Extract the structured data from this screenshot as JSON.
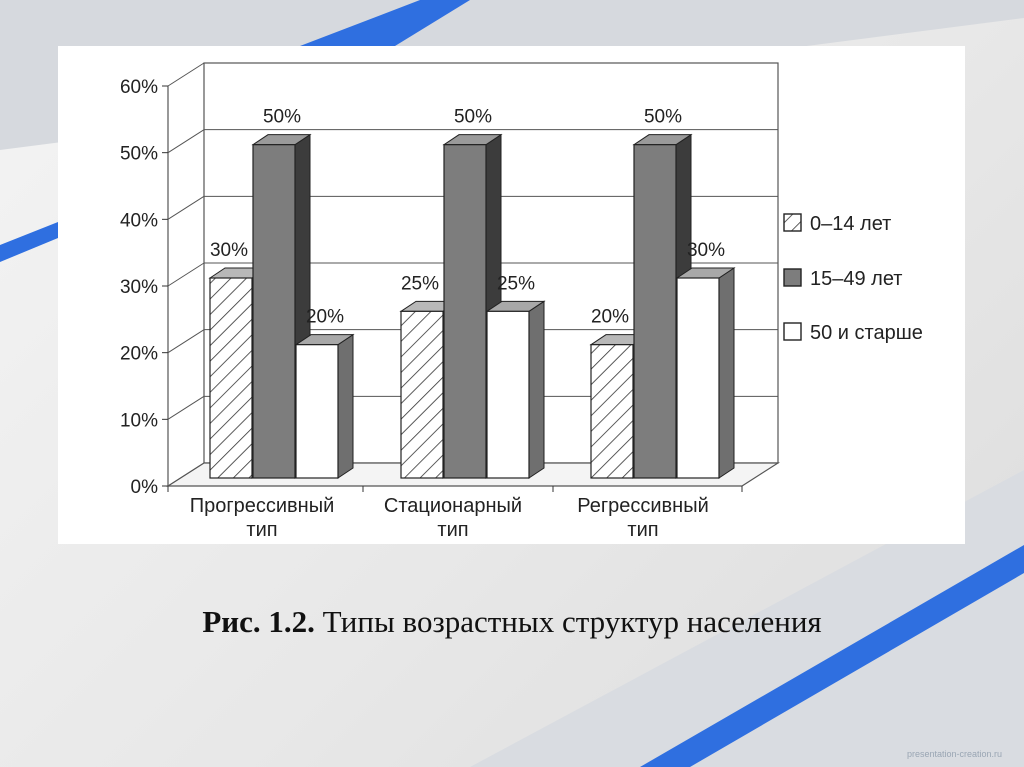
{
  "caption": {
    "label": "Рис. 1.2.",
    "text": "Типы возрастных структур населения"
  },
  "watermark": "presentation-creation.ru",
  "colors": {
    "accent_blue": "#2f6fe0",
    "bar_dark": "#7d7d7d",
    "bar_light": "#ffffff"
  },
  "chart_data": {
    "type": "bar",
    "title": "",
    "xlabel": "",
    "ylabel": "",
    "ylim": [
      0,
      60
    ],
    "yticks": [
      "0%",
      "10%",
      "20%",
      "30%",
      "40%",
      "50%",
      "60%"
    ],
    "categories": [
      {
        "line1": "Прогрессивный",
        "line2": "тип"
      },
      {
        "line1": "Стационарный",
        "line2": "тип"
      },
      {
        "line1": "Регрессивный",
        "line2": "тип"
      }
    ],
    "series": [
      {
        "name": "0–14 лет",
        "values": [
          30,
          25,
          20
        ],
        "labels": [
          "30%",
          "25%",
          "20%"
        ],
        "pattern": "hatch"
      },
      {
        "name": "15–49 лет",
        "values": [
          50,
          50,
          50
        ],
        "labels": [
          "50%",
          "50%",
          "50%"
        ],
        "pattern": "dark"
      },
      {
        "name": "50 и старше",
        "values": [
          20,
          25,
          30
        ],
        "labels": [
          "20%",
          "25%",
          "30%"
        ],
        "pattern": "white"
      }
    ],
    "legend_position": "right",
    "grid": true,
    "style": "3d"
  }
}
